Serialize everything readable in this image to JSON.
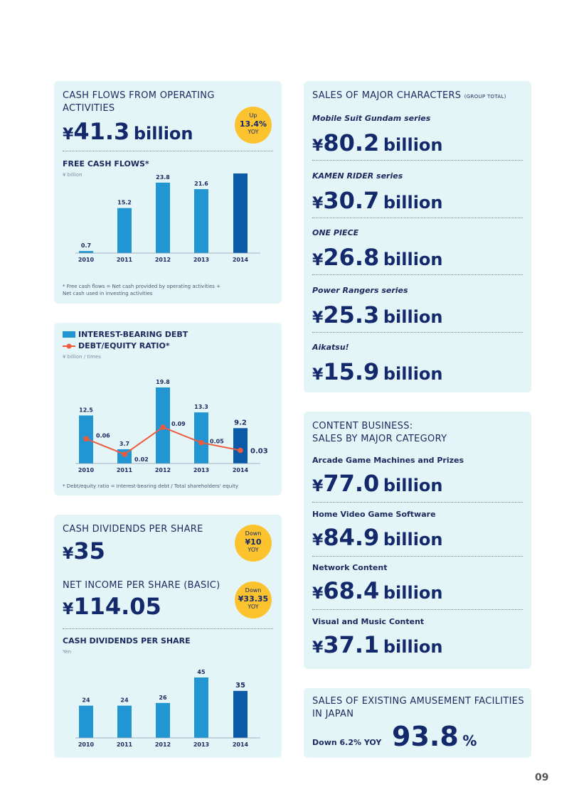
{
  "cash_flow_card": {
    "title": "CASH FLOWS FROM OPERATING ACTIVITIES",
    "yen": "¥",
    "value": "41.3",
    "unit": "billion",
    "badge": {
      "line1": "Up",
      "line2": "13.4%",
      "line3": "YOY"
    },
    "subtitle": "FREE CASH FLOWS*",
    "axis_unit": "¥ billion",
    "note": "* Free cash flows = Net cash provided by operating activities + Net cash used in investing activities"
  },
  "debt_card": {
    "legend_debt": "INTEREST-BEARING DEBT",
    "legend_ratio": "DEBT/EQUITY RATIO*",
    "axis_unit": "¥ billion / times",
    "note": "* Debt/equity ratio = Interest-bearing debt / Total shareholders' equity"
  },
  "dividends_card": {
    "title": "CASH DIVIDENDS PER SHARE",
    "yen": "¥",
    "value": "35",
    "badge": {
      "line1": "Down",
      "line2": "¥10",
      "line3": "YOY"
    },
    "eps_title": "NET INCOME PER SHARE (BASIC)",
    "eps_yen": "¥",
    "eps_value": "114.05",
    "eps_badge": {
      "line1": "Down",
      "line2": "¥33.35",
      "line3": "YOY"
    },
    "subtitle": "CASH DIVIDENDS PER SHARE",
    "axis_unit": "Yen"
  },
  "characters_card": {
    "title": "SALES OF MAJOR CHARACTERS",
    "title_small": "(GROUP TOTAL)",
    "items": [
      {
        "label": "Mobile Suit Gundam series",
        "yen": "¥",
        "value": "80.2",
        "unit": "billion"
      },
      {
        "label": "KAMEN RIDER series",
        "yen": "¥",
        "value": "30.7",
        "unit": "billion"
      },
      {
        "label": "ONE PIECE",
        "yen": "¥",
        "value": "26.8",
        "unit": "billion"
      },
      {
        "label": "Power Rangers series",
        "yen": "¥",
        "value": "25.3",
        "unit": "billion"
      },
      {
        "label": "Aikatsu!",
        "yen": "¥",
        "value": "15.9",
        "unit": "billion"
      }
    ]
  },
  "content_card": {
    "title_line1": "CONTENT BUSINESS:",
    "title_line2": "SALES BY MAJOR CATEGORY",
    "items": [
      {
        "label": "Arcade Game Machines and Prizes",
        "yen": "¥",
        "value": "77.0",
        "unit": "billion"
      },
      {
        "label": "Home Video Game Software",
        "yen": "¥",
        "value": "84.9",
        "unit": "billion"
      },
      {
        "label": "Network Content",
        "yen": "¥",
        "value": "68.4",
        "unit": "billion"
      },
      {
        "label": "Visual and Music Content",
        "yen": "¥",
        "value": "37.1",
        "unit": "billion"
      }
    ]
  },
  "facilities_card": {
    "title_line1": "SALES OF EXISTING AMUSEMENT FACILITIES",
    "title_line2": "IN JAPAN",
    "change": "Down 6.2% YOY",
    "value": "93.8",
    "unit": "%"
  },
  "page_number": "09",
  "colors": {
    "bar": "#2196d3",
    "bar_highlight": "#0a5aa8",
    "line": "#f05a3c",
    "badge": "#fcc32f",
    "card": "#e4f5f8"
  },
  "chart_data": [
    {
      "type": "bar",
      "title": "FREE CASH FLOWS*",
      "ylabel": "¥ billion",
      "categories": [
        "2010",
        "2011",
        "2012",
        "2013",
        "2014"
      ],
      "values": [
        0.7,
        15.2,
        23.8,
        21.6,
        26.9
      ],
      "ylim": [
        0,
        26.9
      ],
      "highlight_index": 4
    },
    {
      "type": "bar+line",
      "ylabel": "¥ billion / times",
      "categories": [
        "2010",
        "2011",
        "2012",
        "2013",
        "2014"
      ],
      "series": [
        {
          "name": "INTEREST-BEARING DEBT",
          "type": "bar",
          "values": [
            12.5,
            3.7,
            19.8,
            13.3,
            9.2
          ]
        },
        {
          "name": "DEBT/EQUITY RATIO*",
          "type": "line",
          "values": [
            0.06,
            0.02,
            0.09,
            0.05,
            0.03
          ]
        }
      ],
      "highlight_index": 4
    },
    {
      "type": "bar",
      "title": "CASH DIVIDENDS PER SHARE",
      "ylabel": "Yen",
      "categories": [
        "2010",
        "2011",
        "2012",
        "2013",
        "2014"
      ],
      "values": [
        24,
        24,
        26,
        45,
        35
      ],
      "ylim": [
        0,
        45
      ],
      "highlight_index": 4
    }
  ]
}
